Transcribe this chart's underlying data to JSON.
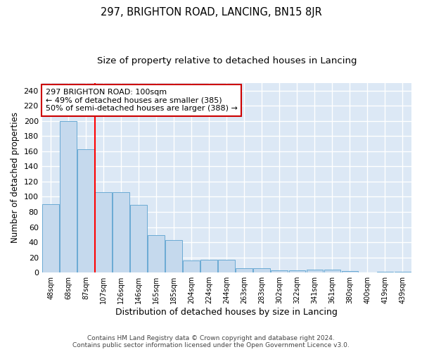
{
  "title": "297, BRIGHTON ROAD, LANCING, BN15 8JR",
  "subtitle": "Size of property relative to detached houses in Lancing",
  "xlabel": "Distribution of detached houses by size in Lancing",
  "ylabel": "Number of detached properties",
  "categories": [
    "48sqm",
    "68sqm",
    "87sqm",
    "107sqm",
    "126sqm",
    "146sqm",
    "165sqm",
    "185sqm",
    "204sqm",
    "224sqm",
    "244sqm",
    "263sqm",
    "283sqm",
    "302sqm",
    "322sqm",
    "341sqm",
    "361sqm",
    "380sqm",
    "400sqm",
    "419sqm",
    "439sqm"
  ],
  "values": [
    90,
    200,
    163,
    106,
    106,
    89,
    49,
    43,
    16,
    17,
    17,
    6,
    6,
    3,
    3,
    4,
    4,
    2,
    0,
    1,
    1
  ],
  "bar_color": "#c5d9ed",
  "bar_edge_color": "#6aaad4",
  "red_line_x": 2.5,
  "annotation_line1": "297 BRIGHTON ROAD: 100sqm",
  "annotation_line2": "← 49% of detached houses are smaller (385)",
  "annotation_line3": "50% of semi-detached houses are larger (388) →",
  "annotation_box_color": "#ffffff",
  "annotation_box_edge_color": "#cc0000",
  "bg_color": "#dce8f5",
  "grid_color": "#ffffff",
  "ylim": [
    0,
    250
  ],
  "yticks": [
    0,
    20,
    40,
    60,
    80,
    100,
    120,
    140,
    160,
    180,
    200,
    220,
    240
  ],
  "footer_text": "Contains HM Land Registry data © Crown copyright and database right 2024.\nContains public sector information licensed under the Open Government Licence v3.0.",
  "title_fontsize": 10.5,
  "subtitle_fontsize": 9.5,
  "xlabel_fontsize": 9,
  "ylabel_fontsize": 8.5
}
